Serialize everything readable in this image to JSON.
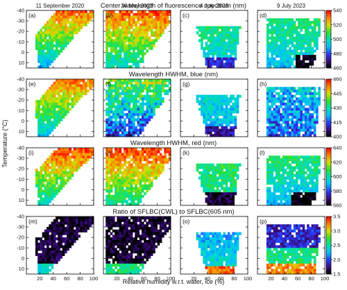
{
  "chart_data": {
    "type": "heatmap",
    "columns": [
      "11 September 2020",
      "26 May 2023",
      "4 July 2023",
      "9 July 2023"
    ],
    "xlabel": "Relative humidity w.r.t. water, ice (%)",
    "ylabel": "Temperature (°C)",
    "xlim": [
      0,
      100
    ],
    "ylim": [
      -40,
      15
    ],
    "x_ticks": [
      20,
      40,
      60,
      80,
      100
    ],
    "y_ticks": [
      -40,
      -30,
      -20,
      -10,
      0,
      10
    ],
    "rows": [
      {
        "title": "Center wavelength of fluorescence spectrum (nm)",
        "panels": [
          "(a)",
          "(b)",
          "(c)",
          "(d)"
        ],
        "colorbar": {
          "min": 460,
          "max": 540,
          "ticks": [
            460,
            480,
            500,
            520,
            540
          ]
        }
      },
      {
        "title": "Wavelength HWHM, blue (nm)",
        "panels": [
          "(e)",
          "(f)",
          "(g)",
          "(h)"
        ],
        "colorbar": {
          "min": 400,
          "max": 460,
          "ticks": [
            400,
            415,
            430,
            445,
            460
          ]
        }
      },
      {
        "title": "Wavelength HWHM, red (nm)",
        "panels": [
          "(i)",
          "(j)",
          "(k)",
          "(l)"
        ],
        "colorbar": {
          "min": 560,
          "max": 640,
          "ticks": [
            560,
            580,
            600,
            620,
            640
          ]
        }
      },
      {
        "title": "Ratio of SFLBC(CWL) to SFLBC(605 nm)",
        "panels": [
          "(m)",
          "(n)",
          "(o)",
          "(p)"
        ],
        "colorbar": {
          "min": 1.5,
          "max": 3.5,
          "ticks": [
            1.5,
            2.0,
            2.5,
            3.0,
            3.5
          ]
        }
      }
    ],
    "colormap": [
      "#000000",
      "#3a0a7a",
      "#2a3cff",
      "#00c0ff",
      "#00e0b0",
      "#30e030",
      "#d8e000",
      "#ff8000",
      "#ff0000"
    ],
    "grid": false
  }
}
